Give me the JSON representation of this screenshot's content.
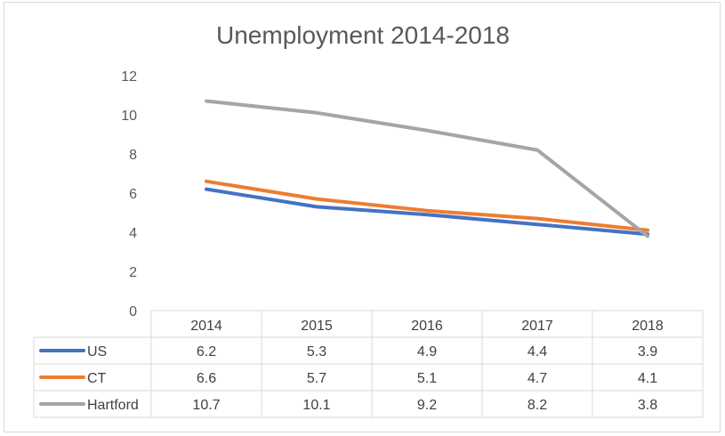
{
  "chart_data": {
    "type": "line",
    "title": "Unemployment 2014-2018",
    "categories": [
      "2014",
      "2015",
      "2016",
      "2017",
      "2018"
    ],
    "ylim": [
      0,
      12
    ],
    "yticks": [
      0,
      2,
      4,
      6,
      8,
      10,
      12
    ],
    "grid": false,
    "legend": "data table",
    "series": [
      {
        "name": "US",
        "color": "#4472c4",
        "values": [
          6.2,
          5.3,
          4.9,
          4.4,
          3.9
        ],
        "labels": [
          "6.2",
          "5.3",
          "4.9",
          "4.4",
          "3.9"
        ]
      },
      {
        "name": "CT",
        "color": "#ed7d31",
        "values": [
          6.6,
          5.7,
          5.1,
          4.7,
          4.1
        ],
        "labels": [
          "6.6",
          "5.7",
          "5.1",
          "4.7",
          "4.1"
        ]
      },
      {
        "name": "Hartford",
        "color": "#a5a5a5",
        "values": [
          10.7,
          10.1,
          9.2,
          8.2,
          3.8
        ],
        "labels": [
          "10.7",
          "10.1",
          "9.2",
          "8.2",
          "3.8"
        ]
      }
    ]
  }
}
